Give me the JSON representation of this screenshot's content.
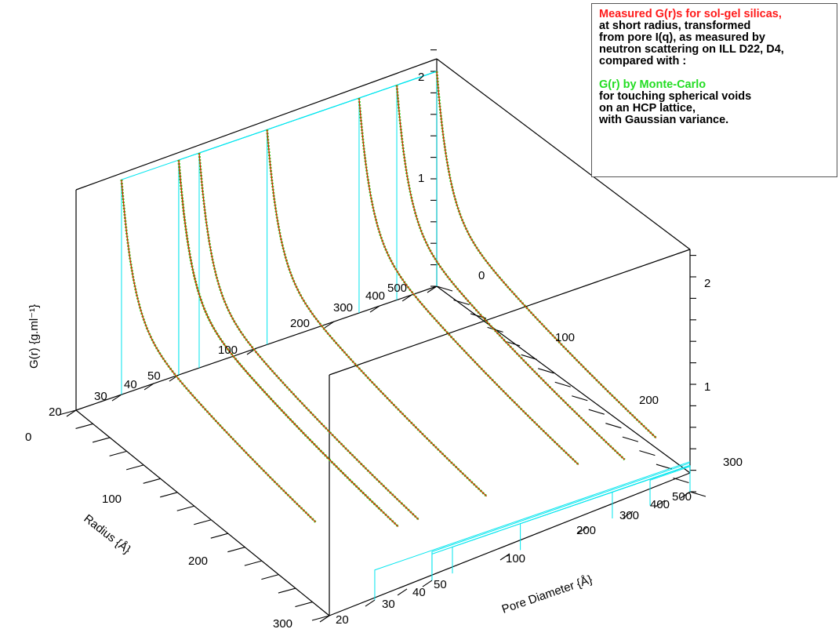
{
  "chart_data": {
    "type": "line",
    "title": "",
    "x_axis": {
      "label": "Pore Diameter {Å}",
      "tick_labels": [
        "20",
        "30",
        "40",
        "50",
        "100",
        "200",
        "300",
        "400",
        "500"
      ],
      "scale": "log"
    },
    "y_axis": {
      "label": "Radius {Å}",
      "range": [
        0,
        300
      ],
      "tick_labels": [
        "0",
        "100",
        "200",
        "300"
      ]
    },
    "z_axis": {
      "label": "G(r) {g.ml⁻¹}",
      "range": [
        0,
        2
      ],
      "tick_labels": [
        "1",
        "2"
      ]
    },
    "series": [
      {
        "name": "Measured G(r)s for sol-gel silicas",
        "color": "#dd2200",
        "marker": "line"
      },
      {
        "name": "G(r) by Monte-Carlo",
        "color": "#22dd22",
        "marker": "dots"
      }
    ],
    "curves": [
      {
        "pore_diameter": 30,
        "z_start": 2.0,
        "r_end": 230
      },
      {
        "pore_diameter": 50,
        "z_start": 2.0,
        "r_end": 240
      },
      {
        "pore_diameter": 50,
        "z_start": 2.0,
        "r_end": 260
      },
      {
        "pore_diameter": 60,
        "z_start": 2.0,
        "r_end": 260
      },
      {
        "pore_diameter": 110,
        "z_start": 2.0,
        "r_end": 260
      },
      {
        "pore_diameter": 250,
        "z_start": 2.0,
        "r_end": 260
      },
      {
        "pore_diameter": 350,
        "z_start": 2.0,
        "r_end": 270
      },
      {
        "pore_diameter": 500,
        "z_start": 2.0,
        "r_end": 260
      }
    ],
    "grid": false,
    "legend": "top-right"
  },
  "legend_text": {
    "line1_red": "Measured G(r)s for sol-gel silicas,",
    "line2": "at short radius, transformed",
    "line3": "from pore I(q), as measured by",
    "line4": "neutron scattering on ILL D22, D4,",
    "line5": "compared with :",
    "line6_green": "G(r) by Monte-Carlo",
    "line7": "for touching spherical voids",
    "line8": "on an HCP lattice,",
    "line9": "with Gaussian variance."
  },
  "colors": {
    "frame": "#000000",
    "projection": "#00e5ee",
    "measured": "#dd2200",
    "montecarlo": "#22dd22"
  }
}
